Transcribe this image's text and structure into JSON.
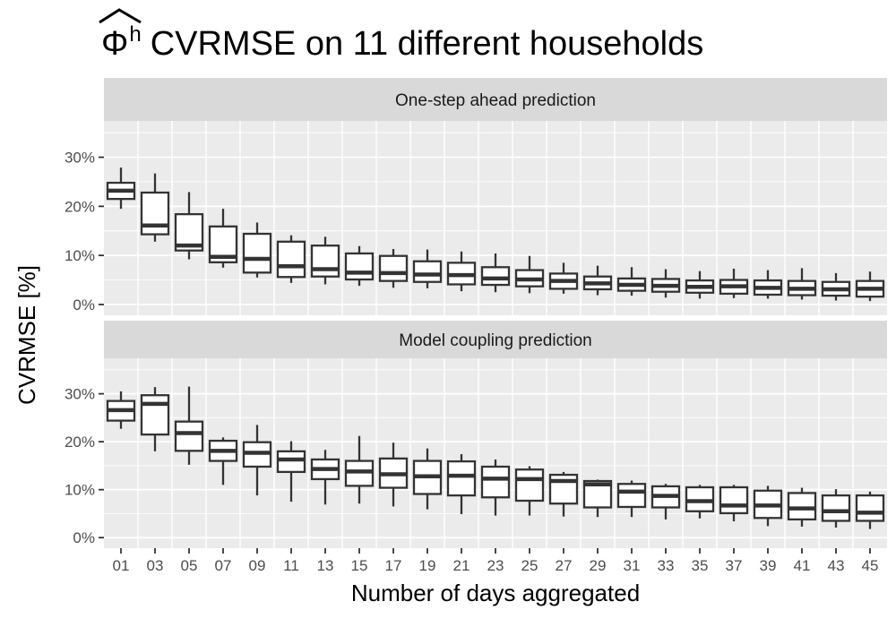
{
  "page_title": "Φ̂ʰ CVRMSE on 11 different households",
  "chart_data": {
    "type": "boxplot",
    "title": "Φ̂ʰ CVRMSE on 11 different households",
    "title_parts": {
      "phi": "Φ",
      "sup": "h",
      "rest": "CVRMSE on 11 different households"
    },
    "xlabel": "Number of days aggregated",
    "ylabel": "CVRMSE [%]",
    "categories": [
      "01",
      "03",
      "05",
      "07",
      "09",
      "11",
      "13",
      "15",
      "17",
      "19",
      "21",
      "23",
      "25",
      "27",
      "29",
      "31",
      "33",
      "35",
      "37",
      "39",
      "41",
      "43",
      "45"
    ],
    "y_ticks": [
      {
        "value": 0,
        "label": "0%"
      },
      {
        "value": 10,
        "label": "10%"
      },
      {
        "value": 20,
        "label": "20%"
      },
      {
        "value": 30,
        "label": "30%"
      }
    ],
    "y_minor_ticks": [
      5,
      15,
      25,
      35
    ],
    "ylim": [
      -2.2,
      37.4
    ],
    "grid": true,
    "legend": "none",
    "facets": [
      {
        "label": "One-step ahead prediction",
        "boxes": [
          {
            "category": "01",
            "low": 19.5,
            "q1": 21.5,
            "median": 23.2,
            "q3": 24.8,
            "high": 27.9
          },
          {
            "category": "03",
            "low": 12.8,
            "q1": 14.3,
            "median": 16.1,
            "q3": 22.8,
            "high": 26.7
          },
          {
            "category": "05",
            "low": 9.2,
            "q1": 11.0,
            "median": 12.0,
            "q3": 18.4,
            "high": 22.9
          },
          {
            "category": "07",
            "low": 7.5,
            "q1": 8.6,
            "median": 9.7,
            "q3": 15.9,
            "high": 19.5
          },
          {
            "category": "09",
            "low": 5.5,
            "q1": 6.5,
            "median": 9.3,
            "q3": 14.4,
            "high": 16.7
          },
          {
            "category": "11",
            "low": 4.4,
            "q1": 5.6,
            "median": 7.8,
            "q3": 12.8,
            "high": 14.1
          },
          {
            "category": "13",
            "low": 4.1,
            "q1": 5.7,
            "median": 7.2,
            "q3": 12.0,
            "high": 13.8
          },
          {
            "category": "15",
            "low": 3.8,
            "q1": 5.1,
            "median": 6.5,
            "q3": 10.4,
            "high": 11.9
          },
          {
            "category": "17",
            "low": 3.4,
            "q1": 4.8,
            "median": 6.4,
            "q3": 9.9,
            "high": 11.3
          },
          {
            "category": "19",
            "low": 3.3,
            "q1": 4.6,
            "median": 6.1,
            "q3": 8.8,
            "high": 11.2
          },
          {
            "category": "21",
            "low": 2.7,
            "q1": 4.1,
            "median": 6.0,
            "q3": 8.5,
            "high": 10.8
          },
          {
            "category": "23",
            "low": 2.5,
            "q1": 4.0,
            "median": 5.3,
            "q3": 7.6,
            "high": 10.4
          },
          {
            "category": "25",
            "low": 2.3,
            "q1": 3.7,
            "median": 5.1,
            "q3": 7.0,
            "high": 9.9
          },
          {
            "category": "27",
            "low": 2.2,
            "q1": 3.2,
            "median": 4.8,
            "q3": 6.3,
            "high": 8.5
          },
          {
            "category": "29",
            "low": 1.9,
            "q1": 3.1,
            "median": 4.3,
            "q3": 5.7,
            "high": 7.9
          },
          {
            "category": "31",
            "low": 1.8,
            "q1": 2.8,
            "median": 4.0,
            "q3": 5.3,
            "high": 7.6
          },
          {
            "category": "33",
            "low": 1.4,
            "q1": 2.6,
            "median": 3.8,
            "q3": 5.2,
            "high": 7.2
          },
          {
            "category": "35",
            "low": 1.2,
            "q1": 2.4,
            "median": 3.6,
            "q3": 4.9,
            "high": 6.8
          },
          {
            "category": "37",
            "low": 1.3,
            "q1": 2.2,
            "median": 3.7,
            "q3": 5.0,
            "high": 7.3
          },
          {
            "category": "39",
            "low": 1.2,
            "q1": 2.0,
            "median": 3.4,
            "q3": 4.9,
            "high": 7.0
          },
          {
            "category": "41",
            "low": 1.0,
            "q1": 1.9,
            "median": 3.2,
            "q3": 4.8,
            "high": 7.4
          },
          {
            "category": "43",
            "low": 0.8,
            "q1": 1.8,
            "median": 3.1,
            "q3": 4.6,
            "high": 6.4
          },
          {
            "category": "45",
            "low": 0.7,
            "q1": 1.6,
            "median": 3.2,
            "q3": 4.8,
            "high": 6.7
          }
        ]
      },
      {
        "label": "Model coupling prediction",
        "boxes": [
          {
            "category": "01",
            "low": 22.7,
            "q1": 24.4,
            "median": 26.6,
            "q3": 28.5,
            "high": 30.5
          },
          {
            "category": "03",
            "low": 18.0,
            "q1": 21.5,
            "median": 27.9,
            "q3": 29.7,
            "high": 31.4
          },
          {
            "category": "05",
            "low": 15.2,
            "q1": 18.1,
            "median": 21.8,
            "q3": 24.2,
            "high": 31.5
          },
          {
            "category": "07",
            "low": 11.0,
            "q1": 16.0,
            "median": 18.1,
            "q3": 20.2,
            "high": 20.9
          },
          {
            "category": "09",
            "low": 8.8,
            "q1": 14.8,
            "median": 17.7,
            "q3": 19.9,
            "high": 23.5
          },
          {
            "category": "11",
            "low": 7.5,
            "q1": 13.7,
            "median": 16.3,
            "q3": 18.0,
            "high": 20.1
          },
          {
            "category": "13",
            "low": 6.9,
            "q1": 12.2,
            "median": 14.3,
            "q3": 16.3,
            "high": 18.3
          },
          {
            "category": "15",
            "low": 7.1,
            "q1": 10.8,
            "median": 13.8,
            "q3": 16.0,
            "high": 21.2
          },
          {
            "category": "17",
            "low": 6.5,
            "q1": 10.4,
            "median": 13.2,
            "q3": 16.5,
            "high": 19.8
          },
          {
            "category": "19",
            "low": 5.9,
            "q1": 9.1,
            "median": 12.8,
            "q3": 16.0,
            "high": 18.6
          },
          {
            "category": "21",
            "low": 4.9,
            "q1": 8.8,
            "median": 12.9,
            "q3": 15.9,
            "high": 17.4
          },
          {
            "category": "23",
            "low": 4.6,
            "q1": 8.4,
            "median": 12.3,
            "q3": 14.8,
            "high": 16.3
          },
          {
            "category": "25",
            "low": 4.6,
            "q1": 7.7,
            "median": 12.2,
            "q3": 14.2,
            "high": 14.9
          },
          {
            "category": "27",
            "low": 4.4,
            "q1": 7.1,
            "median": 11.8,
            "q3": 13.1,
            "high": 13.7
          },
          {
            "category": "29",
            "low": 4.3,
            "q1": 6.3,
            "median": 11.1,
            "q3": 11.8,
            "high": 12.1
          },
          {
            "category": "31",
            "low": 4.3,
            "q1": 6.4,
            "median": 9.6,
            "q3": 11.2,
            "high": 11.9
          },
          {
            "category": "33",
            "low": 3.8,
            "q1": 6.3,
            "median": 8.7,
            "q3": 10.7,
            "high": 11.2
          },
          {
            "category": "35",
            "low": 4.0,
            "q1": 5.5,
            "median": 7.6,
            "q3": 10.5,
            "high": 11.0
          },
          {
            "category": "37",
            "low": 3.4,
            "q1": 5.1,
            "median": 6.7,
            "q3": 10.5,
            "high": 11.0
          },
          {
            "category": "39",
            "low": 2.4,
            "q1": 4.1,
            "median": 6.7,
            "q3": 9.8,
            "high": 10.8
          },
          {
            "category": "41",
            "low": 2.3,
            "q1": 3.8,
            "median": 6.1,
            "q3": 9.3,
            "high": 10.4
          },
          {
            "category": "43",
            "low": 2.1,
            "q1": 3.5,
            "median": 5.5,
            "q3": 8.8,
            "high": 10.1
          },
          {
            "category": "45",
            "low": 1.8,
            "q1": 3.5,
            "median": 5.2,
            "q3": 8.8,
            "high": 9.6
          }
        ]
      }
    ],
    "style": {
      "panel_bg": "#EBEBEB",
      "strip_bg": "#D9D9D9",
      "grid_color": "#FFFFFF",
      "box_color": "#333333",
      "box_fill": "#FFFFFF",
      "tick_color": "#333333",
      "tick_label_color": "#4D4D4D",
      "strip_text_color": "#1A1A1A",
      "title_color": "#000000"
    }
  }
}
